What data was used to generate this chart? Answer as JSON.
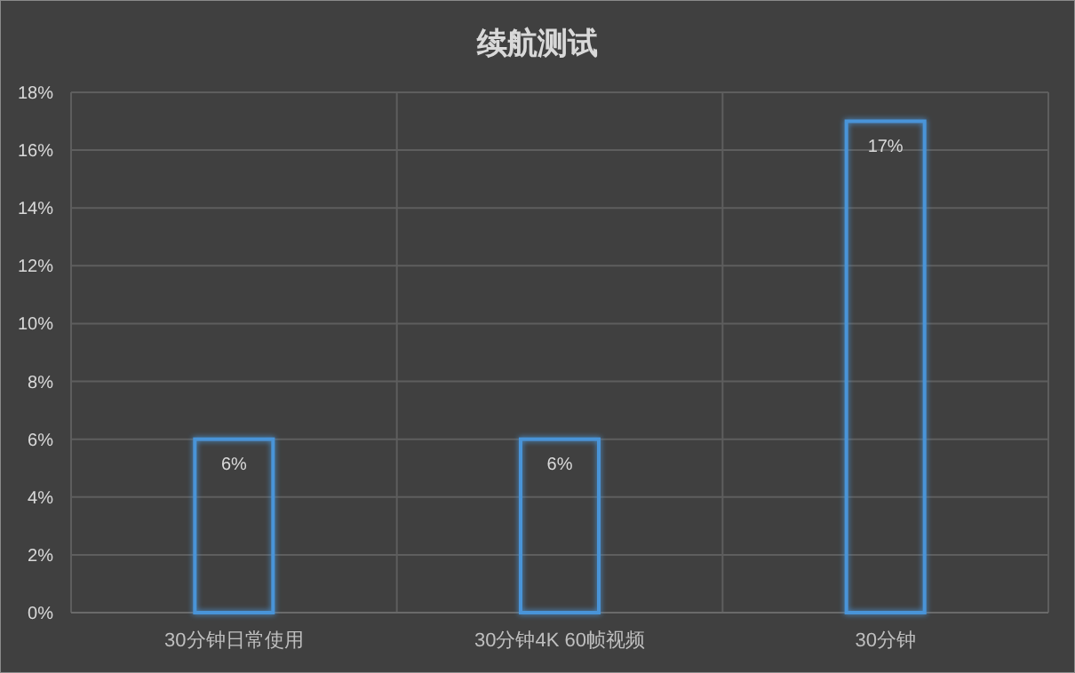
{
  "chart_data": {
    "type": "bar",
    "title": "续航测试",
    "categories": [
      "30分钟日常使用",
      "30分钟4K 60帧视频",
      "30分钟"
    ],
    "values": [
      6,
      6,
      17
    ],
    "value_labels": [
      "6%",
      "6%",
      "17%"
    ],
    "color": "#4a94d8",
    "ylim": [
      0,
      18
    ],
    "yticks": [
      {
        "value": 0,
        "label": "0%"
      },
      {
        "value": 2,
        "label": "2%"
      },
      {
        "value": 4,
        "label": "4%"
      },
      {
        "value": 6,
        "label": "6%"
      },
      {
        "value": 8,
        "label": "8%"
      },
      {
        "value": 10,
        "label": "10%"
      },
      {
        "value": 12,
        "label": "12%"
      },
      {
        "value": 14,
        "label": "14%"
      },
      {
        "value": 16,
        "label": "16%"
      },
      {
        "value": 18,
        "label": "18%"
      }
    ],
    "grid": true
  }
}
